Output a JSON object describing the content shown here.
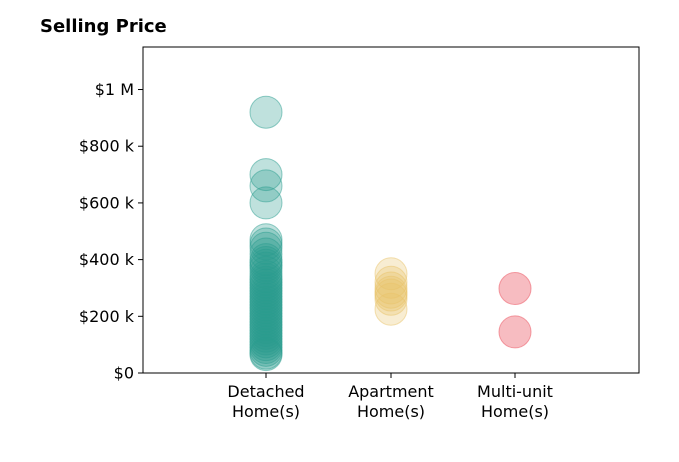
{
  "chart_data": {
    "type": "scatter",
    "title": "Selling Price",
    "xlabel": "",
    "ylabel": "",
    "ylim": [
      0,
      1150000
    ],
    "grid": false,
    "categories": [
      [
        "Detached",
        "Home(s)"
      ],
      [
        "Apartment",
        "Home(s)"
      ],
      [
        "Multi-unit",
        "Home(s)"
      ]
    ],
    "y_ticks": [
      {
        "value": 0,
        "label": "$0"
      },
      {
        "value": 200000,
        "label": "$200 k"
      },
      {
        "value": 400000,
        "label": "$400 k"
      },
      {
        "value": 600000,
        "label": "$600 k"
      },
      {
        "value": 800000,
        "label": "$800 k"
      },
      {
        "value": 1000000,
        "label": "$1 M"
      }
    ],
    "series": [
      {
        "category_index": 0,
        "color": "#2a9d8f",
        "opacity": 0.3,
        "values": [
          920000,
          700000,
          660000,
          600000,
          470000,
          455000,
          440000,
          420000,
          400000,
          390000,
          380000,
          370000,
          355000,
          340000,
          330000,
          320000,
          310000,
          300000,
          290000,
          280000,
          270000,
          260000,
          250000,
          240000,
          230000,
          220000,
          210000,
          200000,
          190000,
          180000,
          170000,
          160000,
          150000,
          140000,
          130000,
          120000,
          110000,
          100000,
          90000,
          80000,
          70000,
          65000
        ]
      },
      {
        "category_index": 1,
        "color": "#e9c46a",
        "opacity": 0.3,
        "values": [
          350000,
          320000,
          300000,
          285000,
          275000,
          260000,
          225000
        ]
      },
      {
        "category_index": 2,
        "color": "#ee6b76",
        "opacity": 0.45,
        "values": [
          298000,
          145000
        ]
      }
    ]
  }
}
